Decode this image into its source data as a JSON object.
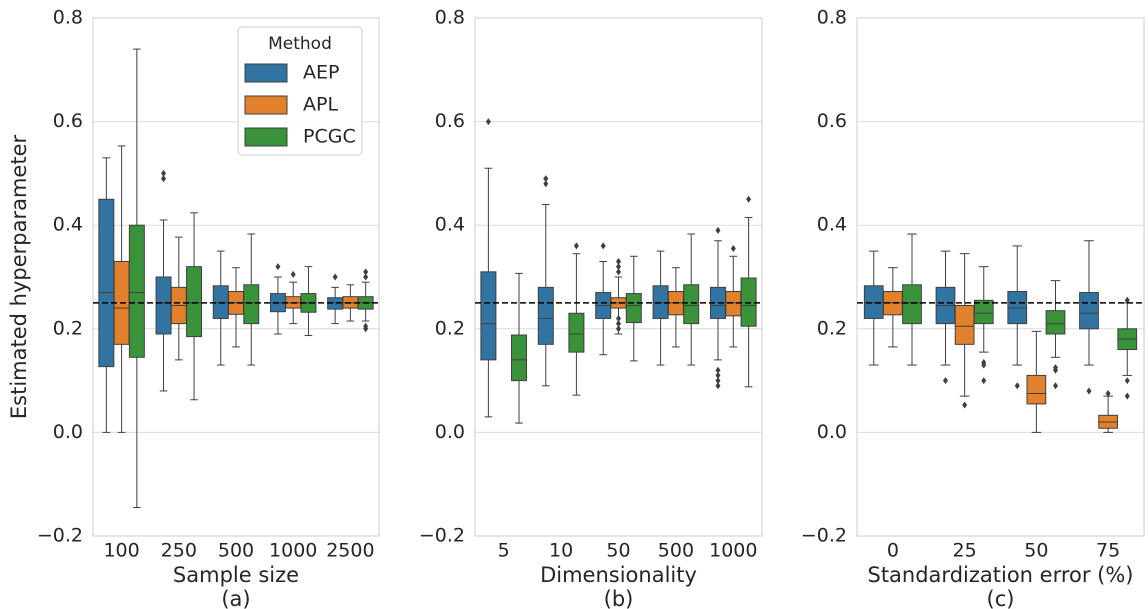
{
  "chart_data": [
    {
      "type": "box",
      "ylabel": "Estimated hyperparameter",
      "xlabel": "Sample size",
      "caption": "(a)",
      "categories": [
        "100",
        "250",
        "500",
        "1000",
        "2500"
      ],
      "ylim": [
        -0.2,
        0.8
      ],
      "yticks": [
        {
          "value": -0.2,
          "label": "−0.2"
        },
        {
          "value": 0,
          "label": "0.0"
        },
        0.2,
        0.4,
        0.6,
        0.8
      ],
      "grid": true,
      "hline": 0.25,
      "legend": "upper right",
      "legend_title": "Method",
      "series": [
        {
          "name": "AEP",
          "color": "#3274a1",
          "values": [
            {
              "whislo": 0.0,
              "q1": 0.127,
              "med": 0.27,
              "q3": 0.45,
              "whishi": 0.53,
              "fliers": []
            },
            {
              "whislo": 0.08,
              "q1": 0.19,
              "med": 0.25,
              "q3": 0.3,
              "whishi": 0.41,
              "fliers": [
                0.49,
                0.5
              ]
            },
            {
              "whislo": 0.13,
              "q1": 0.22,
              "med": 0.25,
              "q3": 0.283,
              "whishi": 0.35,
              "fliers": []
            },
            {
              "whislo": 0.19,
              "q1": 0.233,
              "med": 0.25,
              "q3": 0.268,
              "whishi": 0.3,
              "fliers": [
                0.32
              ]
            },
            {
              "whislo": 0.21,
              "q1": 0.238,
              "med": 0.25,
              "q3": 0.26,
              "whishi": 0.28,
              "fliers": [
                0.3
              ]
            }
          ]
        },
        {
          "name": "APL",
          "color": "#e1812c",
          "values": [
            {
              "whislo": 0.0,
              "q1": 0.17,
              "med": 0.24,
              "q3": 0.33,
              "whishi": 0.553,
              "fliers": []
            },
            {
              "whislo": 0.14,
              "q1": 0.21,
              "med": 0.245,
              "q3": 0.28,
              "whishi": 0.377,
              "fliers": []
            },
            {
              "whislo": 0.165,
              "q1": 0.228,
              "med": 0.25,
              "q3": 0.272,
              "whishi": 0.318,
              "fliers": []
            },
            {
              "whislo": 0.21,
              "q1": 0.24,
              "med": 0.25,
              "q3": 0.262,
              "whishi": 0.29,
              "fliers": [
                0.305
              ]
            },
            {
              "whislo": 0.215,
              "q1": 0.24,
              "med": 0.25,
              "q3": 0.262,
              "whishi": 0.285,
              "fliers": []
            }
          ]
        },
        {
          "name": "PCGC",
          "color": "#3a923a",
          "values": [
            {
              "whislo": -0.145,
              "q1": 0.145,
              "med": 0.27,
              "q3": 0.4,
              "whishi": 0.74,
              "fliers": []
            },
            {
              "whislo": 0.063,
              "q1": 0.185,
              "med": 0.25,
              "q3": 0.32,
              "whishi": 0.424,
              "fliers": []
            },
            {
              "whislo": 0.13,
              "q1": 0.21,
              "med": 0.25,
              "q3": 0.285,
              "whishi": 0.383,
              "fliers": []
            },
            {
              "whislo": 0.187,
              "q1": 0.232,
              "med": 0.25,
              "q3": 0.268,
              "whishi": 0.32,
              "fliers": []
            },
            {
              "whislo": 0.215,
              "q1": 0.238,
              "med": 0.25,
              "q3": 0.262,
              "whishi": 0.29,
              "fliers": [
                0.31,
                0.3,
                0.2,
                0.205
              ]
            }
          ]
        }
      ]
    },
    {
      "type": "box",
      "xlabel": "Dimensionality",
      "caption": "(b)",
      "categories": [
        "5",
        "10",
        "50",
        "500",
        "1000"
      ],
      "ylim": [
        -0.2,
        0.8
      ],
      "yticks": [
        {
          "value": -0.2,
          "label": "−0.2"
        },
        {
          "value": 0,
          "label": "0.0"
        },
        0.2,
        0.4,
        0.6,
        0.8
      ],
      "grid": true,
      "hline": 0.25,
      "series": [
        {
          "name": "AEP",
          "color": "#3274a1",
          "values": [
            {
              "whislo": 0.03,
              "q1": 0.14,
              "med": 0.21,
              "q3": 0.31,
              "whishi": 0.51,
              "fliers": [
                0.6
              ]
            },
            {
              "whislo": 0.09,
              "q1": 0.17,
              "med": 0.22,
              "q3": 0.28,
              "whishi": 0.44,
              "fliers": [
                0.48,
                0.49
              ]
            },
            {
              "whislo": 0.15,
              "q1": 0.22,
              "med": 0.245,
              "q3": 0.27,
              "whishi": 0.33,
              "fliers": [
                0.36
              ]
            },
            {
              "whislo": 0.13,
              "q1": 0.22,
              "med": 0.25,
              "q3": 0.283,
              "whishi": 0.35,
              "fliers": []
            },
            {
              "whislo": 0.14,
              "q1": 0.22,
              "med": 0.245,
              "q3": 0.28,
              "whishi": 0.37,
              "fliers": [
                0.39,
                0.09,
                0.1,
                0.11,
                0.12
              ]
            }
          ]
        },
        {
          "name": "APL",
          "color": "#e1812c",
          "values": [
            null,
            null,
            {
              "whislo": 0.19,
              "q1": 0.24,
              "med": 0.25,
              "q3": 0.26,
              "whishi": 0.3,
              "fliers": [
                0.2,
                0.21,
                0.22,
                0.31,
                0.32,
                0.33
              ]
            },
            {
              "whislo": 0.165,
              "q1": 0.227,
              "med": 0.25,
              "q3": 0.272,
              "whishi": 0.318,
              "fliers": []
            },
            {
              "whislo": 0.165,
              "q1": 0.225,
              "med": 0.25,
              "q3": 0.272,
              "whishi": 0.34,
              "fliers": [
                0.355
              ]
            }
          ]
        },
        {
          "name": "PCGC",
          "color": "#3a923a",
          "values": [
            {
              "whislo": 0.018,
              "q1": 0.1,
              "med": 0.14,
              "q3": 0.188,
              "whishi": 0.307,
              "fliers": []
            },
            {
              "whislo": 0.072,
              "q1": 0.155,
              "med": 0.19,
              "q3": 0.23,
              "whishi": 0.345,
              "fliers": [
                0.36
              ]
            },
            {
              "whislo": 0.138,
              "q1": 0.212,
              "med": 0.245,
              "q3": 0.268,
              "whishi": 0.34,
              "fliers": []
            },
            {
              "whislo": 0.13,
              "q1": 0.21,
              "med": 0.245,
              "q3": 0.285,
              "whishi": 0.383,
              "fliers": []
            },
            {
              "whislo": 0.088,
              "q1": 0.205,
              "med": 0.245,
              "q3": 0.298,
              "whishi": 0.415,
              "fliers": [
                0.45
              ]
            }
          ]
        }
      ]
    },
    {
      "type": "box",
      "xlabel": "Standardization error (%)",
      "caption": "(c)",
      "categories": [
        "0",
        "25",
        "50",
        "75"
      ],
      "ylim": [
        -0.2,
        0.8
      ],
      "yticks": [
        {
          "value": -0.2,
          "label": "−0.2"
        },
        {
          "value": 0,
          "label": "0.0"
        },
        0.2,
        0.4,
        0.6,
        0.8
      ],
      "grid": true,
      "hline": 0.25,
      "series": [
        {
          "name": "AEP",
          "color": "#3274a1",
          "values": [
            {
              "whislo": 0.13,
              "q1": 0.22,
              "med": 0.25,
              "q3": 0.283,
              "whishi": 0.35,
              "fliers": []
            },
            {
              "whislo": 0.13,
              "q1": 0.21,
              "med": 0.245,
              "q3": 0.28,
              "whishi": 0.35,
              "fliers": [
                0.1
              ]
            },
            {
              "whislo": 0.13,
              "q1": 0.21,
              "med": 0.24,
              "q3": 0.272,
              "whishi": 0.36,
              "fliers": [
                0.09
              ]
            },
            {
              "whislo": 0.13,
              "q1": 0.2,
              "med": 0.23,
              "q3": 0.27,
              "whishi": 0.37,
              "fliers": [
                0.08
              ]
            }
          ]
        },
        {
          "name": "APL",
          "color": "#e1812c",
          "values": [
            {
              "whislo": 0.165,
              "q1": 0.227,
              "med": 0.25,
              "q3": 0.272,
              "whishi": 0.318,
              "fliers": []
            },
            {
              "whislo": 0.07,
              "q1": 0.17,
              "med": 0.205,
              "q3": 0.245,
              "whishi": 0.345,
              "fliers": [
                0.053
              ]
            },
            {
              "whislo": 0.0,
              "q1": 0.055,
              "med": 0.075,
              "q3": 0.11,
              "whishi": 0.195,
              "fliers": []
            },
            {
              "whislo": 0.0,
              "q1": 0.008,
              "med": 0.02,
              "q3": 0.033,
              "whishi": 0.07,
              "fliers": [
                0.075
              ]
            }
          ]
        },
        {
          "name": "PCGC",
          "color": "#3a923a",
          "values": [
            {
              "whislo": 0.13,
              "q1": 0.21,
              "med": 0.25,
              "q3": 0.285,
              "whishi": 0.383,
              "fliers": []
            },
            {
              "whislo": 0.155,
              "q1": 0.21,
              "med": 0.23,
              "q3": 0.255,
              "whishi": 0.32,
              "fliers": [
                0.1,
                0.13,
                0.135
              ]
            },
            {
              "whislo": 0.145,
              "q1": 0.19,
              "med": 0.21,
              "q3": 0.235,
              "whishi": 0.293,
              "fliers": [
                0.12,
                0.125,
                0.09
              ]
            },
            {
              "whislo": 0.11,
              "q1": 0.16,
              "med": 0.18,
              "q3": 0.2,
              "whishi": 0.25,
              "fliers": [
                0.255,
                0.1,
                0.07
              ]
            }
          ]
        }
      ]
    }
  ]
}
